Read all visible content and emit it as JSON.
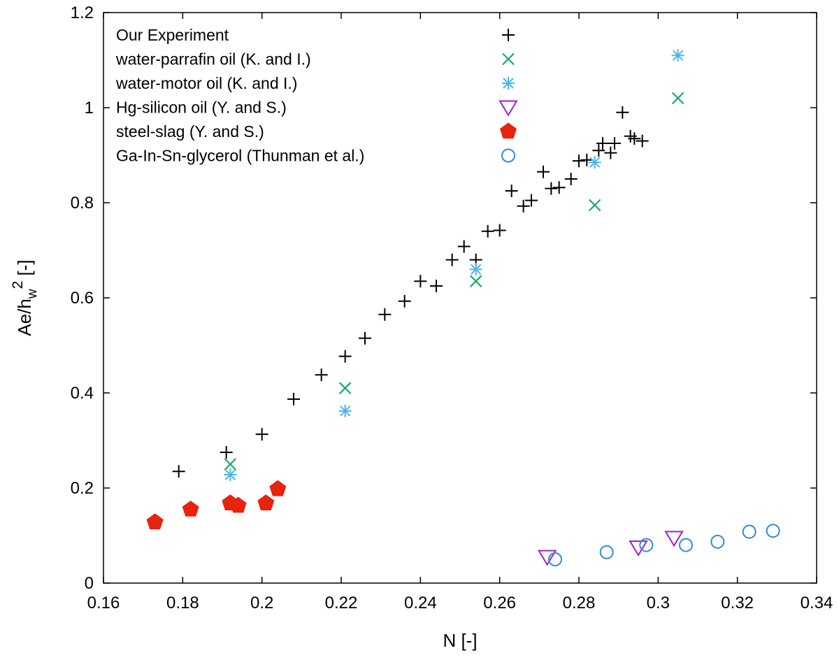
{
  "chart_data": {
    "type": "scatter",
    "xlabel": "N [-]",
    "ylabel": "Ae/hw2 [-]",
    "ylabel_parts": {
      "main": "Ae/h",
      "sub": "w",
      "sup": "2",
      "tail": " [-]"
    },
    "xlim": [
      0.16,
      0.34
    ],
    "ylim": [
      0,
      1.2
    ],
    "xticks": [
      "0.16",
      "0.18",
      "0.2",
      "0.22",
      "0.24",
      "0.26",
      "0.28",
      "0.3",
      "0.32",
      "0.34"
    ],
    "yticks": [
      "0",
      "0.2",
      "0.4",
      "0.6",
      "0.8",
      "1",
      "1.2"
    ],
    "grid": false,
    "legend_position": "top-left",
    "series": [
      {
        "name": "Our Experiment",
        "marker": "plus",
        "color": "#000000",
        "points": [
          [
            0.179,
            0.235
          ],
          [
            0.191,
            0.275
          ],
          [
            0.2,
            0.313
          ],
          [
            0.208,
            0.387
          ],
          [
            0.215,
            0.438
          ],
          [
            0.221,
            0.477
          ],
          [
            0.226,
            0.515
          ],
          [
            0.231,
            0.565
          ],
          [
            0.236,
            0.593
          ],
          [
            0.24,
            0.635
          ],
          [
            0.244,
            0.625
          ],
          [
            0.248,
            0.68
          ],
          [
            0.251,
            0.708
          ],
          [
            0.254,
            0.68
          ],
          [
            0.257,
            0.74
          ],
          [
            0.26,
            0.742
          ],
          [
            0.263,
            0.825
          ],
          [
            0.266,
            0.793
          ],
          [
            0.268,
            0.805
          ],
          [
            0.271,
            0.865
          ],
          [
            0.273,
            0.83
          ],
          [
            0.275,
            0.832
          ],
          [
            0.278,
            0.85
          ],
          [
            0.28,
            0.888
          ],
          [
            0.282,
            0.89
          ],
          [
            0.285,
            0.91
          ],
          [
            0.286,
            0.925
          ],
          [
            0.288,
            0.905
          ],
          [
            0.289,
            0.925
          ],
          [
            0.291,
            0.99
          ],
          [
            0.293,
            0.94
          ],
          [
            0.294,
            0.935
          ],
          [
            0.296,
            0.93
          ]
        ]
      },
      {
        "name": "water-parrafin oil (K. and I.)",
        "marker": "x",
        "color": "#1aaa6e",
        "points": [
          [
            0.192,
            0.25
          ],
          [
            0.221,
            0.41
          ],
          [
            0.254,
            0.635
          ],
          [
            0.284,
            0.795
          ],
          [
            0.305,
            1.02
          ]
        ]
      },
      {
        "name": "water-motor oil (K. and I.)",
        "marker": "asterisk",
        "color": "#4db5ec",
        "points": [
          [
            0.192,
            0.228
          ],
          [
            0.221,
            0.362
          ],
          [
            0.254,
            0.66
          ],
          [
            0.284,
            0.885
          ],
          [
            0.305,
            1.11
          ]
        ]
      },
      {
        "name": "Hg-silicon oil (Y. and S.)",
        "marker": "triangle-down",
        "color": "#a020d0",
        "points": [
          [
            0.272,
            0.055
          ],
          [
            0.295,
            0.075
          ],
          [
            0.304,
            0.095
          ]
        ]
      },
      {
        "name": "steel-slag (Y. and S.)",
        "marker": "pentagon-filled",
        "color": "#e8230e",
        "points": [
          [
            0.173,
            0.128
          ],
          [
            0.182,
            0.155
          ],
          [
            0.192,
            0.168
          ],
          [
            0.194,
            0.163
          ],
          [
            0.201,
            0.168
          ],
          [
            0.204,
            0.198
          ]
        ]
      },
      {
        "name": "Ga-In-Sn-glycerol (Thunman et al.)",
        "marker": "circle-open",
        "color": "#2d8ed0",
        "points": [
          [
            0.274,
            0.05
          ],
          [
            0.287,
            0.065
          ],
          [
            0.297,
            0.08
          ],
          [
            0.307,
            0.08
          ],
          [
            0.315,
            0.087
          ],
          [
            0.323,
            0.108
          ],
          [
            0.329,
            0.11
          ]
        ]
      }
    ]
  }
}
